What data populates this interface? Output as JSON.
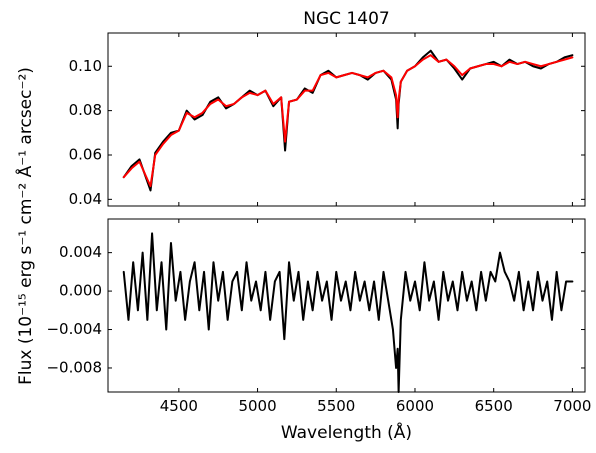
{
  "chart_data": [
    {
      "type": "line",
      "title": "NGC 1407",
      "xlabel": "",
      "xlim": [
        4050,
        7080
      ],
      "ylim": [
        0.037,
        0.115
      ],
      "xticks": [
        4500,
        5000,
        5500,
        6000,
        6500,
        7000
      ],
      "yticks": [
        0.04,
        0.06,
        0.08,
        0.1
      ],
      "ytick_labels": [
        "0.04",
        "0.06",
        "0.08",
        "0.10"
      ],
      "tick_direction": "in",
      "grid": false,
      "series": [
        {
          "color": "#000000",
          "x": [
            4150,
            4200,
            4250,
            4300,
            4320,
            4350,
            4400,
            4450,
            4500,
            4550,
            4600,
            4650,
            4700,
            4750,
            4800,
            4850,
            4900,
            4950,
            5000,
            5050,
            5100,
            5150,
            5175,
            5200,
            5250,
            5300,
            5350,
            5400,
            5450,
            5500,
            5550,
            5600,
            5650,
            5700,
            5750,
            5800,
            5850,
            5880,
            5890,
            5896,
            5910,
            5950,
            6000,
            6050,
            6100,
            6150,
            6200,
            6250,
            6300,
            6350,
            6400,
            6450,
            6500,
            6550,
            6600,
            6650,
            6700,
            6750,
            6800,
            6850,
            6900,
            6950,
            7000
          ],
          "y": [
            0.05,
            0.055,
            0.058,
            0.048,
            0.044,
            0.061,
            0.066,
            0.07,
            0.071,
            0.08,
            0.076,
            0.078,
            0.084,
            0.086,
            0.081,
            0.083,
            0.086,
            0.089,
            0.087,
            0.089,
            0.082,
            0.086,
            0.062,
            0.084,
            0.085,
            0.09,
            0.088,
            0.096,
            0.098,
            0.095,
            0.096,
            0.097,
            0.096,
            0.094,
            0.097,
            0.098,
            0.094,
            0.085,
            0.072,
            0.083,
            0.093,
            0.098,
            0.1,
            0.104,
            0.107,
            0.102,
            0.103,
            0.099,
            0.094,
            0.099,
            0.1,
            0.101,
            0.102,
            0.1,
            0.103,
            0.101,
            0.102,
            0.1,
            0.099,
            0.101,
            0.102,
            0.104,
            0.105
          ]
        },
        {
          "color": "#ff0000",
          "x": [
            4150,
            4200,
            4250,
            4300,
            4320,
            4350,
            4400,
            4450,
            4500,
            4550,
            4600,
            4650,
            4700,
            4750,
            4800,
            4850,
            4900,
            4950,
            5000,
            5050,
            5100,
            5150,
            5175,
            5200,
            5250,
            5300,
            5350,
            5400,
            5450,
            5500,
            5550,
            5600,
            5650,
            5700,
            5750,
            5800,
            5850,
            5880,
            5890,
            5896,
            5910,
            5950,
            6000,
            6050,
            6100,
            6150,
            6200,
            6250,
            6300,
            6350,
            6400,
            6450,
            6500,
            6550,
            6600,
            6650,
            6700,
            6750,
            6800,
            6850,
            6900,
            6950,
            7000
          ],
          "y": [
            0.05,
            0.054,
            0.057,
            0.049,
            0.046,
            0.06,
            0.065,
            0.069,
            0.071,
            0.079,
            0.077,
            0.079,
            0.083,
            0.085,
            0.082,
            0.083,
            0.086,
            0.088,
            0.087,
            0.089,
            0.083,
            0.086,
            0.066,
            0.084,
            0.085,
            0.089,
            0.089,
            0.096,
            0.097,
            0.095,
            0.096,
            0.097,
            0.096,
            0.095,
            0.097,
            0.098,
            0.095,
            0.087,
            0.077,
            0.085,
            0.093,
            0.098,
            0.1,
            0.103,
            0.105,
            0.102,
            0.103,
            0.1,
            0.096,
            0.099,
            0.1,
            0.101,
            0.101,
            0.1,
            0.102,
            0.101,
            0.102,
            0.101,
            0.1,
            0.101,
            0.102,
            0.103,
            0.104
          ]
        }
      ]
    },
    {
      "type": "line",
      "title": "",
      "xlabel": "Wavelength (Å)",
      "xlim": [
        4050,
        7080
      ],
      "ylim": [
        -0.0105,
        0.0075
      ],
      "xticks": [
        4500,
        5000,
        5500,
        6000,
        6500,
        7000
      ],
      "yticks": [
        -0.008,
        -0.004,
        0.0,
        0.004
      ],
      "ytick_labels": [
        "−0.008",
        "−0.004",
        "0.000",
        "0.004"
      ],
      "tick_direction": "in",
      "grid": false,
      "series": [
        {
          "color": "#000000",
          "x": [
            4150,
            4180,
            4210,
            4240,
            4270,
            4300,
            4330,
            4360,
            4390,
            4420,
            4450,
            4480,
            4510,
            4540,
            4570,
            4600,
            4630,
            4660,
            4690,
            4720,
            4750,
            4780,
            4810,
            4840,
            4870,
            4900,
            4930,
            4960,
            4990,
            5020,
            5050,
            5080,
            5110,
            5140,
            5170,
            5200,
            5230,
            5260,
            5290,
            5320,
            5350,
            5380,
            5410,
            5440,
            5470,
            5500,
            5530,
            5560,
            5590,
            5620,
            5650,
            5680,
            5710,
            5740,
            5770,
            5800,
            5830,
            5860,
            5880,
            5890,
            5896,
            5910,
            5940,
            5970,
            6000,
            6030,
            6060,
            6090,
            6120,
            6150,
            6180,
            6210,
            6240,
            6270,
            6300,
            6330,
            6360,
            6390,
            6420,
            6450,
            6480,
            6510,
            6540,
            6570,
            6600,
            6630,
            6660,
            6690,
            6720,
            6750,
            6780,
            6810,
            6840,
            6870,
            6900,
            6930,
            6960,
            7000
          ],
          "y": [
            0.002,
            -0.003,
            0.003,
            -0.002,
            0.004,
            -0.003,
            0.006,
            -0.002,
            0.003,
            -0.004,
            0.005,
            -0.001,
            0.002,
            -0.003,
            0.001,
            0.003,
            -0.002,
            0.002,
            -0.004,
            0.003,
            -0.001,
            0.002,
            -0.003,
            0.001,
            0.002,
            -0.002,
            0.003,
            -0.001,
            0.001,
            -0.002,
            0.002,
            -0.003,
            0.001,
            0.002,
            -0.005,
            0.003,
            -0.001,
            0.002,
            -0.003,
            0.001,
            -0.002,
            0.002,
            -0.001,
            0.001,
            -0.003,
            0.002,
            -0.001,
            0.001,
            -0.002,
            0.002,
            -0.001,
            0.001,
            -0.002,
            0.001,
            -0.003,
            0.002,
            -0.001,
            -0.004,
            -0.008,
            -0.006,
            -0.0105,
            -0.003,
            0.002,
            -0.001,
            0.001,
            -0.002,
            0.003,
            -0.001,
            0.001,
            -0.003,
            0.002,
            -0.001,
            0.001,
            -0.002,
            0.002,
            -0.001,
            0.001,
            -0.002,
            0.002,
            -0.001,
            0.002,
            0.001,
            0.004,
            0.002,
            0.001,
            -0.001,
            0.002,
            -0.002,
            0.001,
            -0.002,
            0.002,
            -0.001,
            0.001,
            -0.003,
            0.002,
            -0.002,
            0.001,
            0.001
          ]
        }
      ]
    }
  ],
  "shared_ylabel": "Flux (10⁻¹⁵ erg s⁻¹ cm⁻² Å⁻¹ arcsec⁻²)"
}
